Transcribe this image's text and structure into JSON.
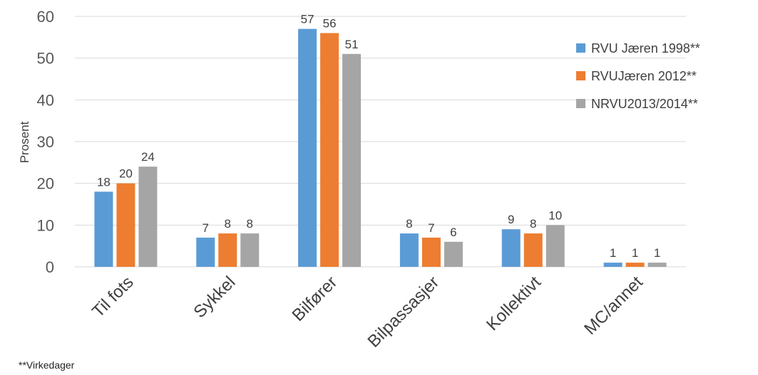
{
  "chart_data": {
    "type": "bar",
    "title": "",
    "xlabel": "",
    "ylabel": "Prosent",
    "ylim": [
      0,
      60
    ],
    "yticks": [
      0,
      10,
      20,
      30,
      40,
      50,
      60
    ],
    "grid": true,
    "legend_position": "right",
    "categories": [
      "Til fots",
      "Sykkel",
      "Bilfører",
      "Bilpassasjer",
      "Kollektivt",
      "MC/annet"
    ],
    "series": [
      {
        "name": "RVU Jæren 1998**",
        "color": "#5B9BD5",
        "values": [
          18,
          7,
          57,
          8,
          9,
          1
        ]
      },
      {
        "name": "RVUJæren 2012**",
        "color": "#ED7D31",
        "values": [
          20,
          8,
          56,
          7,
          8,
          1
        ]
      },
      {
        "name": "NRVU2013/2014**",
        "color": "#A5A5A5",
        "values": [
          24,
          8,
          51,
          6,
          10,
          1
        ]
      }
    ]
  },
  "footnote": "**Virkedager"
}
